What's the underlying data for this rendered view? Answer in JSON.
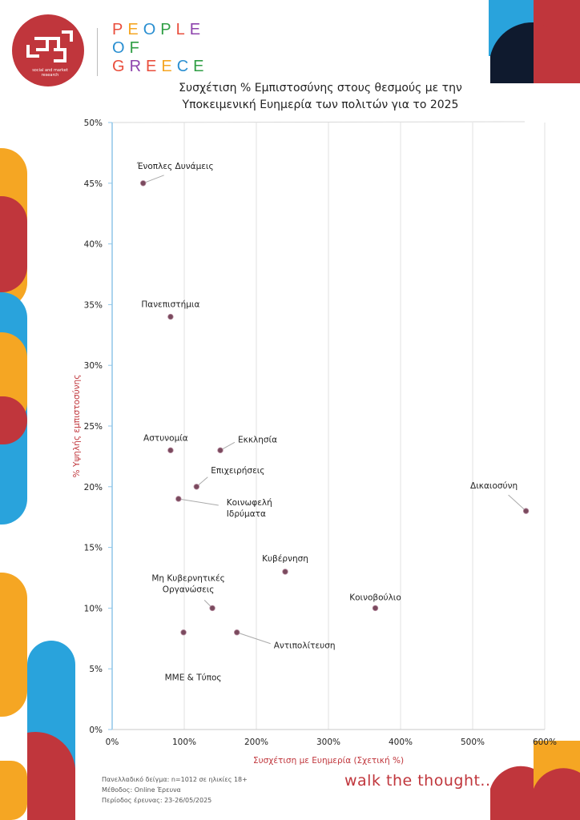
{
  "header": {
    "logo_caption": "social and market research",
    "brand_lines": [
      "PEOPLE",
      "OF",
      "GREECE"
    ],
    "brand_colors": [
      "#e94e3c",
      "#f5a623",
      "#2a8fd1",
      "#2f9e44",
      "#e94e3c",
      "#8e44ad"
    ]
  },
  "footer": {
    "notes": [
      "Πανελλαδικό δείγμα: n=1012 σε ηλικίες 18+",
      "Μέθοδος: Online Έρευνα",
      "Περίοδος έρευνας:  23-26/05/2025"
    ],
    "tagline": "walk the thought..."
  },
  "colors": {
    "accent_red": "#c0363c",
    "accent_orange": "#f5a623",
    "accent_blue": "#29a3dc",
    "dark_navy": "#0f1a2e",
    "point": "#7a4a5e",
    "axis_label": "#c0363c"
  },
  "chart_data": {
    "type": "scatter",
    "title": [
      "Συσχέτιση % Εμπιστοσύνης στους θεσμούς με την",
      "Υποκειμενική Ευημερία των πολιτών για το 2025"
    ],
    "xlabel": "Συσχέτιση με Ευημερία (Σχετική %)",
    "ylabel": "% Υψηλής εμπιστοσύνης",
    "xlim": [
      0,
      600
    ],
    "ylim": [
      0,
      50
    ],
    "xticks": [
      "0%",
      "100%",
      "200%",
      "300%",
      "400%",
      "500%",
      "600%"
    ],
    "yticks": [
      "0%",
      "5%",
      "10%",
      "15%",
      "20%",
      "25%",
      "30%",
      "35%",
      "40%",
      "45%",
      "50%"
    ],
    "grid": "vertical",
    "points": [
      {
        "label": "Ένοπλες Δυνάμεις",
        "x": 43,
        "y": 45
      },
      {
        "label": "Πανεπιστήμια",
        "x": 81,
        "y": 34
      },
      {
        "label": "Αστυνομία",
        "x": 81,
        "y": 23
      },
      {
        "label": "Εκκλησία",
        "x": 150,
        "y": 23
      },
      {
        "label": "Επιχειρήσεις",
        "x": 117,
        "y": 20
      },
      {
        "label": "Κοινωφελή Ιδρύματα",
        "x": 92,
        "y": 19
      },
      {
        "label": "Δικαιοσύνη",
        "x": 574,
        "y": 18
      },
      {
        "label": "Κυβέρνηση",
        "x": 240,
        "y": 13
      },
      {
        "label": "Μη Κυβερνητικές Οργανώσεις",
        "x": 139,
        "y": 10
      },
      {
        "label": "Κοινοβούλιο",
        "x": 365,
        "y": 10
      },
      {
        "label": "ΜΜΕ & Τύπος",
        "x": 99,
        "y": 8
      },
      {
        "label": "Αντιπολίτευση",
        "x": 173,
        "y": 8
      }
    ]
  }
}
